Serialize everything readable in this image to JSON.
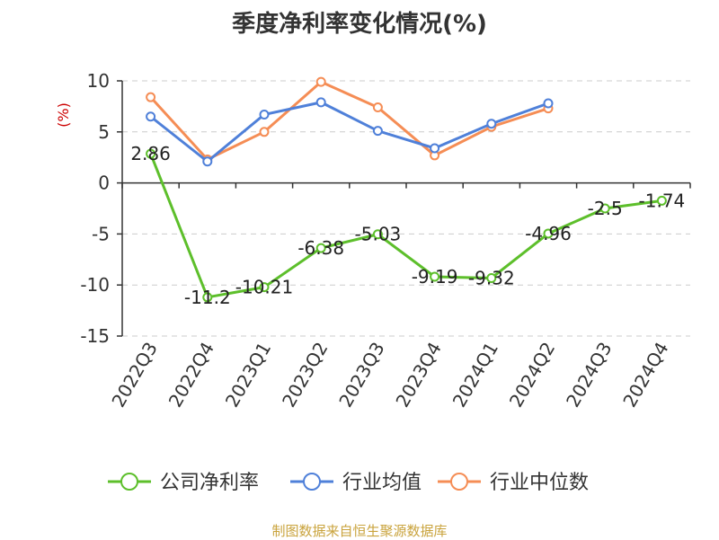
{
  "chart_data": {
    "type": "line",
    "title": "季度净利率变化情况(%)",
    "ylabel": "(%)",
    "ylim": [
      -15,
      10
    ],
    "yticks": [
      10,
      5,
      0,
      -5,
      -10,
      -15
    ],
    "grid": true,
    "legend_position": "bottom",
    "categories": [
      "2022Q3",
      "2022Q4",
      "2023Q1",
      "2023Q2",
      "2023Q3",
      "2023Q4",
      "2024Q1",
      "2024Q2",
      "2024Q3",
      "2024Q4"
    ],
    "series": [
      {
        "name": "公司净利率",
        "color": "#5dbf2b",
        "values": [
          2.86,
          -11.2,
          -10.21,
          -6.38,
          -5.03,
          -9.19,
          -9.32,
          -4.96,
          -2.5,
          -1.74
        ],
        "labels": [
          "2.86",
          "-11.2",
          "-10.21",
          "-6.38",
          "-5.03",
          "-9.19",
          "-9.32",
          "-4.96",
          "-2.5",
          "-1.74"
        ]
      },
      {
        "name": "行业均值",
        "color": "#4f80d9",
        "values": [
          6.5,
          2.1,
          6.7,
          7.9,
          5.1,
          3.4,
          5.8,
          7.8,
          null,
          null
        ]
      },
      {
        "name": "行业中位数",
        "color": "#f58d55",
        "values": [
          8.4,
          2.3,
          5.0,
          9.9,
          7.4,
          2.7,
          5.5,
          7.3,
          null,
          null
        ]
      }
    ]
  },
  "source_note": "制图数据来自恒生聚源数据库"
}
